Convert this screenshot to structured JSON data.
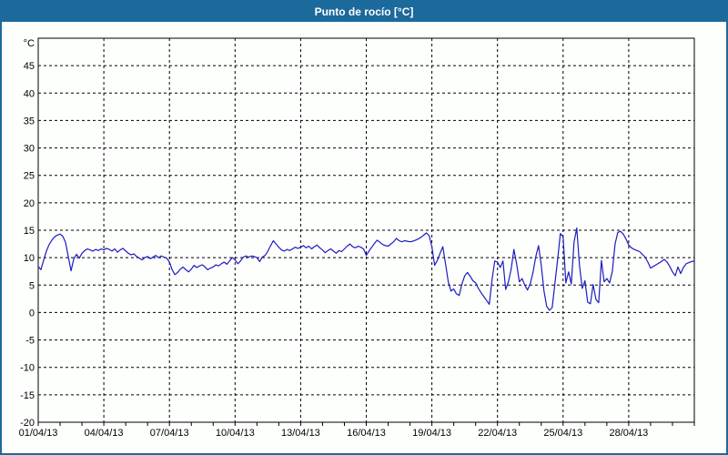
{
  "header": {
    "title": "Punto de rocío [°C]",
    "bg_color": "#1c699c",
    "text_color": "#ffffff"
  },
  "panel": {
    "bg_color": "#fdfffd",
    "border_color": "#1c699c"
  },
  "chart_data": {
    "type": "line",
    "title": "Punto de rocío [°C]",
    "y_unit_label": "°C",
    "ylim": [
      -20,
      50
    ],
    "y_tick_min": -20,
    "y_tick_max": 45,
    "y_tick_step": 5,
    "x_tick_labels": [
      "01/04/13",
      "04/04/13",
      "07/04/13",
      "10/04/13",
      "13/04/13",
      "16/04/13",
      "19/04/13",
      "22/04/13",
      "25/04/13",
      "28/04/13"
    ],
    "x_major_step_days": 3,
    "x_days_span": 30,
    "grid": "dashed",
    "grid_color": "#000000",
    "legend": "none",
    "series": [
      {
        "name": "Punto de rocío",
        "color": "#1c1cc0",
        "interval_days": 0.125,
        "start_label": "01/04/13",
        "values": [
          8.4,
          7.8,
          9.6,
          11.2,
          12.4,
          13.2,
          13.8,
          14.1,
          14.3,
          13.9,
          12.8,
          10.2,
          7.6,
          9.8,
          10.6,
          9.9,
          10.8,
          11.3,
          11.6,
          11.4,
          11.2,
          11.5,
          11.3,
          11.6,
          11.4,
          11.7,
          11.5,
          11.2,
          11.6,
          11.0,
          11.4,
          11.7,
          11.2,
          10.8,
          10.5,
          10.7,
          10.2,
          9.9,
          9.6,
          10.0,
          10.2,
          9.8,
          10.1,
          10.4,
          10.0,
          10.3,
          10.1,
          9.9,
          9.2,
          7.8,
          6.9,
          7.3,
          7.9,
          8.3,
          7.8,
          7.4,
          7.9,
          8.6,
          8.2,
          8.5,
          8.7,
          8.3,
          7.8,
          8.1,
          8.3,
          8.7,
          8.5,
          8.9,
          9.2,
          8.8,
          9.4,
          10.0,
          9.6,
          8.9,
          9.4,
          10.1,
          10.3,
          10.1,
          10.3,
          10.2,
          10.0,
          9.3,
          10.1,
          10.4,
          11.2,
          12.2,
          13.1,
          12.5,
          11.9,
          11.4,
          11.2,
          11.5,
          11.3,
          11.6,
          11.9,
          11.7,
          11.9,
          12.2,
          11.8,
          12.1,
          11.6,
          12.0,
          12.3,
          11.8,
          11.4,
          10.9,
          11.3,
          11.6,
          11.2,
          10.8,
          11.3,
          11.1,
          11.6,
          12.1,
          12.5,
          12.0,
          11.8,
          12.1,
          11.9,
          11.6,
          10.4,
          11.2,
          11.9,
          12.6,
          13.2,
          12.8,
          12.4,
          12.2,
          12.1,
          12.5,
          12.9,
          13.5,
          13.1,
          12.9,
          13.1,
          13.0,
          12.9,
          13.0,
          13.2,
          13.4,
          13.7,
          14.1,
          14.5,
          14.0,
          12.0,
          8.6,
          9.5,
          10.8,
          12.0,
          8.9,
          5.6,
          3.9,
          4.3,
          3.4,
          3.1,
          5.2,
          6.7,
          7.3,
          6.6,
          5.8,
          5.4,
          4.4,
          3.6,
          2.9,
          2.2,
          1.5,
          6.0,
          9.4,
          9.2,
          8.2,
          9.4,
          4.2,
          5.6,
          7.9,
          11.5,
          8.9,
          5.6,
          6.2,
          5.0,
          4.1,
          5.3,
          7.4,
          10.2,
          12.2,
          8.6,
          3.9,
          1.1,
          0.4,
          0.9,
          5.3,
          9.7,
          14.4,
          13.8,
          5.4,
          7.4,
          5.2,
          12.8,
          15.4,
          8.6,
          4.4,
          5.8,
          1.9,
          1.6,
          5.1,
          2.4,
          1.8,
          9.5,
          5.6,
          6.2,
          5.4,
          7.5,
          12.5,
          14.6,
          14.8,
          14.3,
          13.4,
          12.3,
          11.8,
          11.5,
          11.3,
          11.1,
          10.6,
          10.1,
          9.2,
          8.1,
          8.4,
          8.7,
          9.0,
          9.3,
          9.7,
          9.2,
          8.4,
          7.4,
          6.7,
          8.3,
          7.1,
          8.2,
          8.9,
          9.1,
          9.3,
          9.4
        ]
      }
    ]
  }
}
